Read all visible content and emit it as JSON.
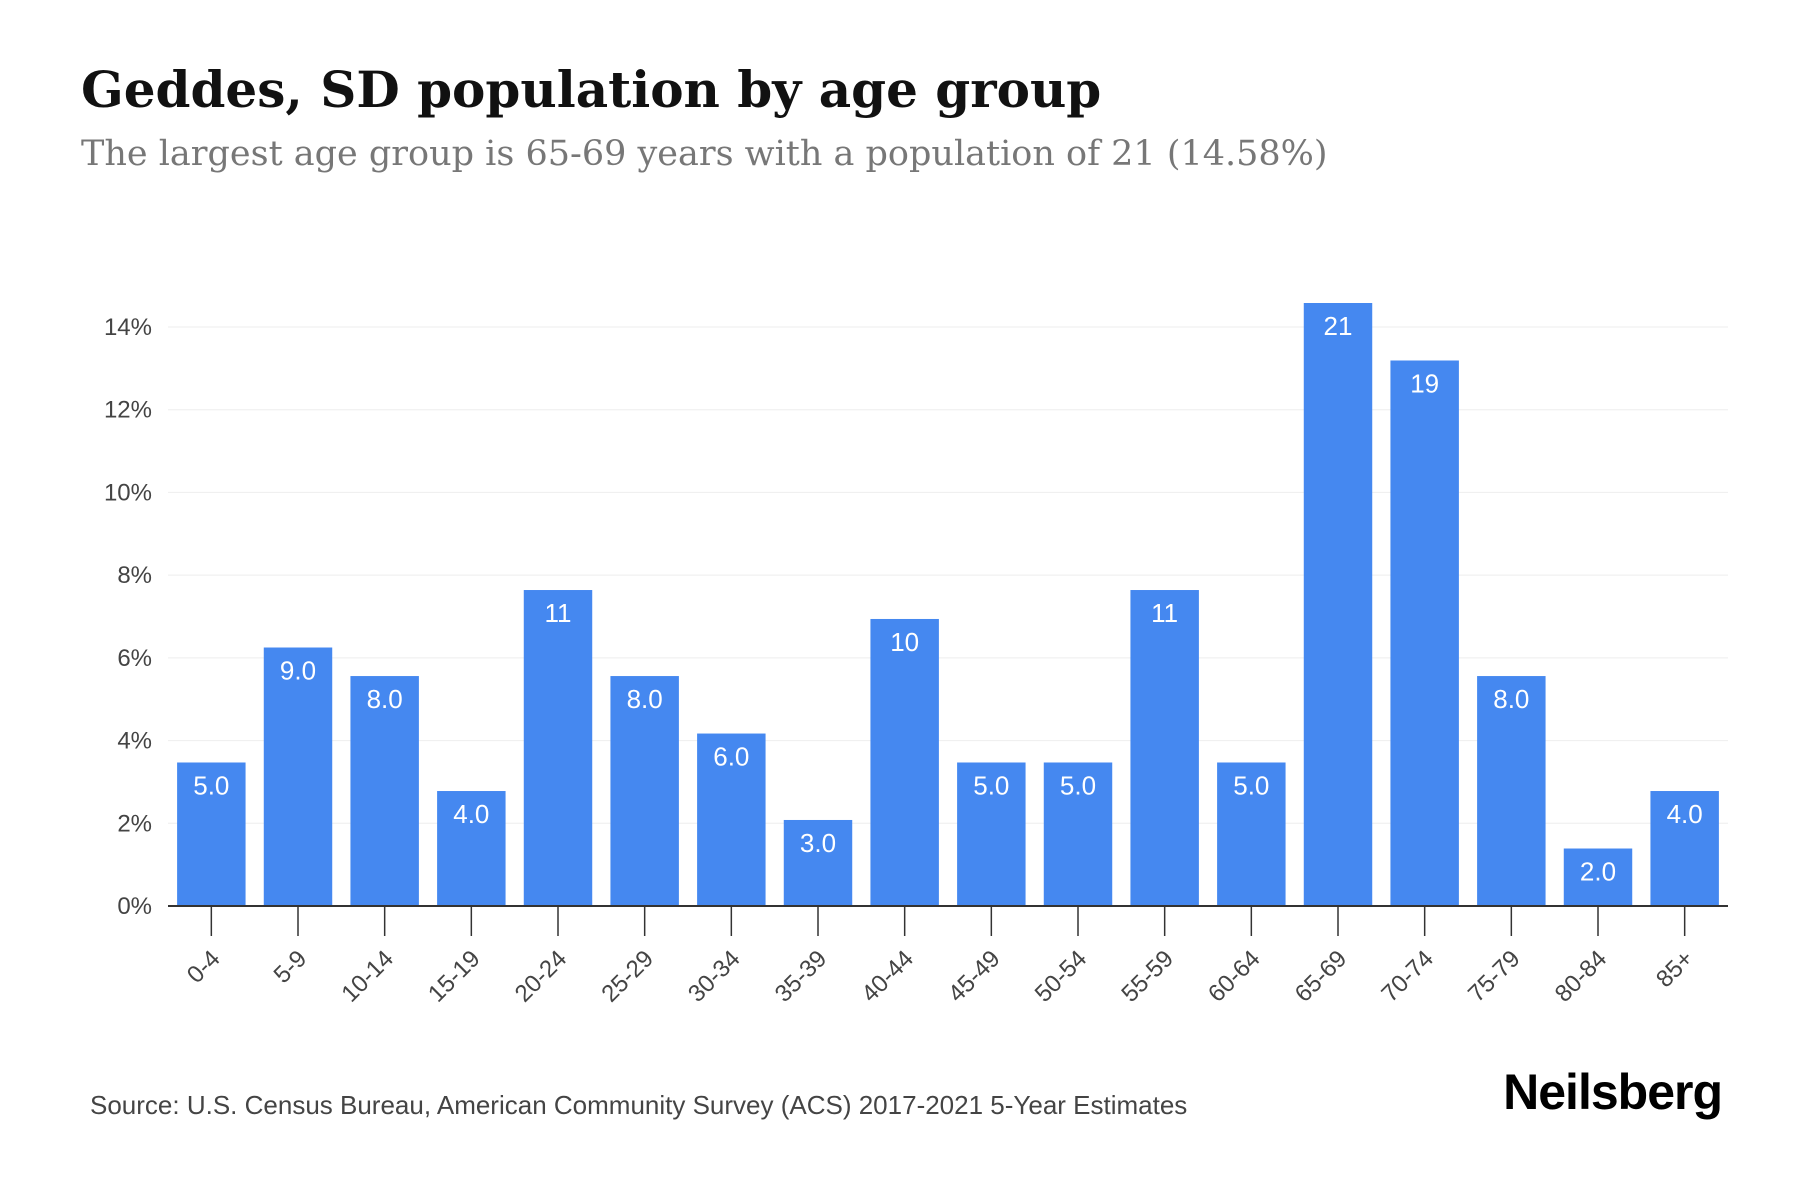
{
  "chart_data": {
    "type": "bar",
    "title": "Geddes, SD population by age group",
    "subtitle": "The largest age group is 65-69 years with a population of 21 (14.58%)",
    "categories": [
      "0-4",
      "5-9",
      "10-14",
      "15-19",
      "20-24",
      "25-29",
      "30-34",
      "35-39",
      "40-44",
      "45-49",
      "50-54",
      "55-59",
      "60-64",
      "65-69",
      "70-74",
      "75-79",
      "80-84",
      "85+"
    ],
    "values_percent": [
      3.47,
      6.25,
      5.56,
      2.78,
      7.64,
      5.56,
      4.17,
      2.08,
      6.94,
      3.47,
      3.47,
      7.64,
      3.47,
      14.58,
      13.19,
      5.56,
      1.39,
      2.78
    ],
    "data_labels": [
      "5.0",
      "9.0",
      "8.0",
      "4.0",
      "11",
      "8.0",
      "6.0",
      "3.0",
      "10",
      "5.0",
      "5.0",
      "11",
      "5.0",
      "21",
      "19",
      "8.0",
      "2.0",
      "4.0"
    ],
    "ylim": [
      0,
      14.58
    ],
    "y_ticks": [
      0,
      2,
      4,
      6,
      8,
      10,
      12,
      14
    ],
    "y_tick_labels": [
      "0%",
      "2%",
      "4%",
      "6%",
      "8%",
      "10%",
      "12%",
      "14%"
    ],
    "xlabel": "",
    "ylabel": "",
    "grid": true,
    "colors": {
      "bar": "#4588F0",
      "grid": "#EEEEEE",
      "axis": "#333333"
    }
  },
  "source": "Source: U.S. Census Bureau, American Community Survey (ACS) 2017-2021 5-Year Estimates",
  "brand": "Neilsberg"
}
